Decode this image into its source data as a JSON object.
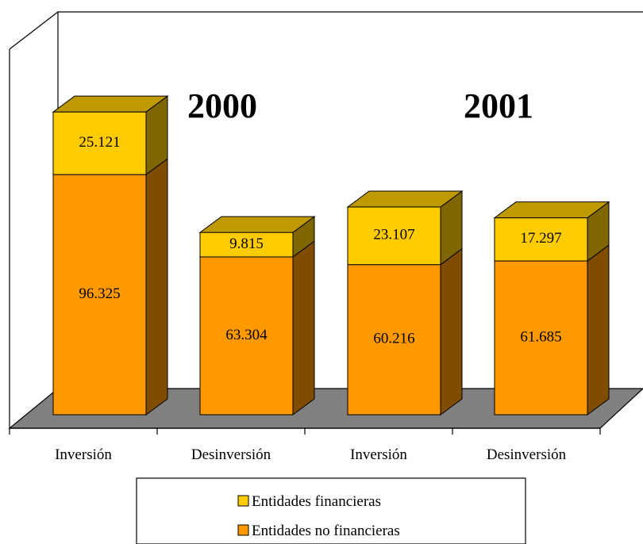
{
  "chart_data": {
    "type": "bar",
    "stacked": true,
    "three_d": true,
    "categories": [
      "Inversión",
      "Desinversión",
      "Inversión",
      "Desinversión"
    ],
    "groups": [
      {
        "label": "2000",
        "categories": [
          0,
          1
        ]
      },
      {
        "label": "2001",
        "categories": [
          2,
          3
        ]
      }
    ],
    "series": [
      {
        "name": "Entidades no financieras",
        "color": "#FF9900",
        "values": [
          96.325,
          63.304,
          60.216,
          61.685
        ],
        "labels": [
          "96.325",
          "63.304",
          "60.216",
          "61.685"
        ]
      },
      {
        "name": "Entidades financieras",
        "color": "#FFCC00",
        "values": [
          25.121,
          9.815,
          23.107,
          17.297
        ],
        "labels": [
          "25.121",
          "9.815",
          "23.107",
          "17.297"
        ]
      }
    ],
    "legend": {
      "position": "bottom",
      "order": [
        "Entidades financieras",
        "Entidades no financieras"
      ]
    },
    "floor_color": "#808080",
    "grid": false
  }
}
